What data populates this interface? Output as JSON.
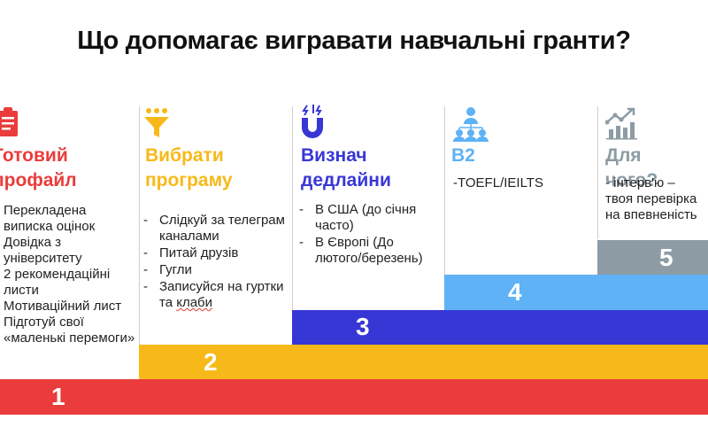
{
  "title": "Що допомагає вигравати навчальні гранти?",
  "colors": {
    "red": "#ea3c3c",
    "yellow": "#f7b919",
    "indigo": "#3737d6",
    "sky": "#5eb2f5",
    "gray": "#8c9ba4"
  },
  "steps": [
    {
      "number": "1",
      "heading_lines": [
        "Готовий",
        "профайл"
      ],
      "icon": "clipboard-checklist-icon",
      "items": [
        "Перекладена виписка оцінок",
        "Довідка з університету",
        "2 рекомендаційні листи",
        "Мотиваційний лист",
        "Підготуй свої «маленькі перемоги»"
      ]
    },
    {
      "number": "2",
      "heading_lines": [
        "Вибрати",
        "програму"
      ],
      "icon": "funnel-filter-icon",
      "items": [
        "Слідкуй за телеграм каналами",
        "Питай друзів",
        "Гугли",
        "Записуйся на гуртки та",
        "клаби"
      ]
    },
    {
      "number": "3",
      "heading_lines": [
        "Визнач",
        "дедлайни"
      ],
      "icon": "magnet-icon",
      "items": [
        "В США (до січня часто)",
        "В Європі (До лютого/березень)"
      ]
    },
    {
      "number": "4",
      "heading_lines": [
        "В2"
      ],
      "icon": "people-network-icon",
      "items": [
        "-TOEFL/IEILTS"
      ]
    },
    {
      "number": "5",
      "heading_lines": [
        "Для чого?"
      ],
      "icon": "growth-chart-icon",
      "items": [
        "- інтерв'ю – твоя перевірка на впевненість"
      ]
    }
  ]
}
